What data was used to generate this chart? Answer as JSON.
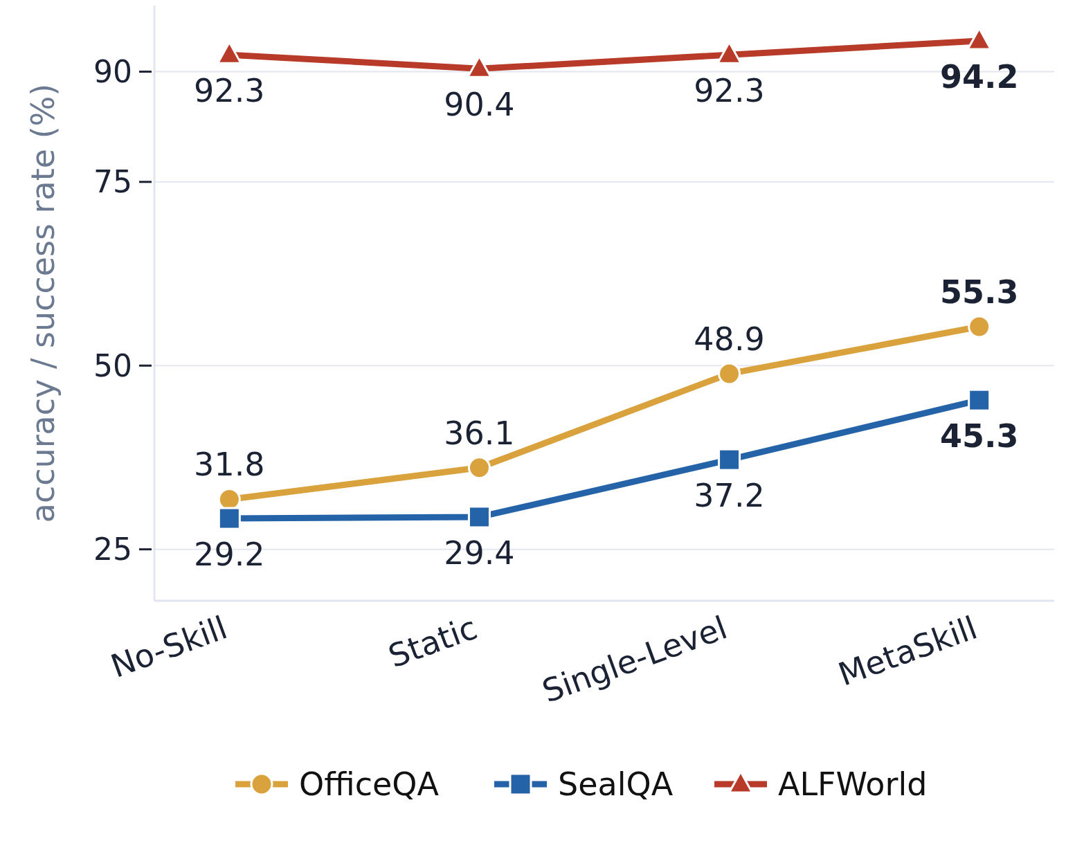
{
  "chart_data": {
    "type": "line",
    "ylabel": "accuracy / success rate (%)",
    "categories": [
      "No-Skill",
      "Static",
      "Single-Level",
      "MetaSkill"
    ],
    "ylim": [
      18,
      99
    ],
    "yticks": [
      25,
      50,
      75,
      90
    ],
    "grid": "y",
    "legend": "bottom",
    "data_labels": true,
    "series": [
      {
        "name": "OfficeQA",
        "color": "#d9a23c",
        "marker": "circle",
        "values": [
          31.8,
          36.1,
          48.9,
          55.3
        ]
      },
      {
        "name": "SealQA",
        "color": "#2563a8",
        "marker": "square",
        "values": [
          29.2,
          29.4,
          37.2,
          45.3
        ]
      },
      {
        "name": "ALFWorld",
        "color": "#b83a28",
        "marker": "triangle",
        "values": [
          92.3,
          90.4,
          92.3,
          94.2
        ]
      }
    ]
  }
}
